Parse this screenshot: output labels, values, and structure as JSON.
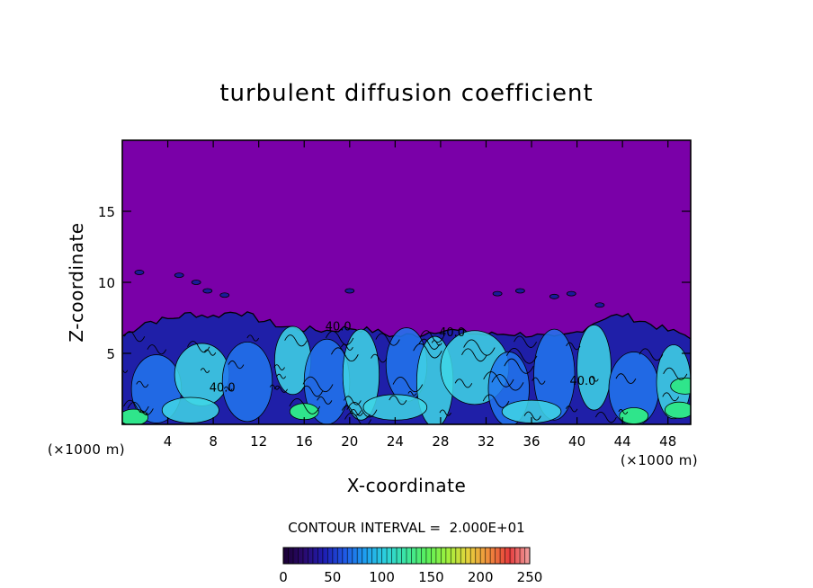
{
  "chart_data": {
    "type": "heatmap",
    "title": "turbulent diffusion coefficient",
    "xlabel": "X-coordinate",
    "ylabel": "Z-coordinate",
    "x_unit_left": "(×1000 m)",
    "x_unit_right": "(×1000 m)",
    "xlim": [
      0,
      50
    ],
    "ylim": [
      0,
      20
    ],
    "xticks": [
      4,
      8,
      12,
      16,
      20,
      24,
      28,
      32,
      36,
      40,
      44,
      48
    ],
    "yticks": [
      5,
      10,
      15
    ],
    "contour_interval_label": "CONTOUR INTERVAL =  2.000E+01",
    "contour_labels": [
      {
        "x": 19.0,
        "z": 6.6,
        "text": "40.0"
      },
      {
        "x": 29.0,
        "z": 6.2,
        "text": "40.0"
      },
      {
        "x": 40.5,
        "z": 2.8,
        "text": "40.0"
      },
      {
        "x": 8.8,
        "z": 2.3,
        "text": "40.0"
      }
    ],
    "boundary_layer_top": {
      "x": [
        0,
        2,
        4,
        6,
        8,
        10,
        12,
        14,
        16,
        18,
        20,
        22,
        24,
        26,
        28,
        30,
        32,
        34,
        36,
        38,
        40,
        42,
        44,
        46,
        48,
        50
      ],
      "z": [
        6.2,
        7.2,
        7.4,
        7.8,
        7.6,
        8.0,
        7.4,
        6.9,
        6.7,
        6.6,
        6.8,
        6.6,
        6.2,
        6.3,
        6.7,
        6.5,
        6.3,
        6.4,
        6.3,
        6.0,
        6.5,
        7.4,
        7.7,
        7.2,
        6.6,
        6.2
      ]
    },
    "colorbar": {
      "min": 0,
      "max": 250,
      "ticks": [
        0,
        50,
        100,
        150,
        200,
        250
      ],
      "colors": [
        "#1a0033",
        "#2a0a6e",
        "#1e1eb4",
        "#1f5ae6",
        "#1ea0f0",
        "#2cd2dc",
        "#3ce6a0",
        "#5af05a",
        "#a0f03c",
        "#e6d23c",
        "#f08c3c",
        "#e63c3c",
        "#f0a0a0"
      ]
    },
    "colors": {
      "background_field": "#7a00a8",
      "low": "#1f1fa8",
      "mid": "#2277ee",
      "high": "#3fd7e6",
      "peak": "#2fe58b"
    }
  }
}
